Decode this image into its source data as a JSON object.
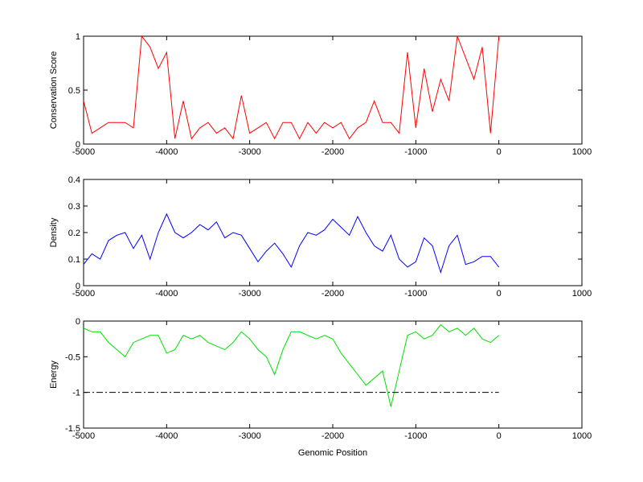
{
  "chart_data": [
    {
      "type": "line",
      "ylabel": "Conservation Score",
      "x": [
        -5000,
        -4900,
        -4800,
        -4700,
        -4600,
        -4500,
        -4400,
        -4300,
        -4200,
        -4100,
        -4000,
        -3900,
        -3800,
        -3700,
        -3600,
        -3500,
        -3400,
        -3300,
        -3200,
        -3100,
        -3000,
        -2900,
        -2800,
        -2700,
        -2600,
        -2500,
        -2400,
        -2300,
        -2200,
        -2100,
        -2000,
        -1900,
        -1800,
        -1700,
        -1600,
        -1500,
        -1400,
        -1300,
        -1200,
        -1100,
        -1000,
        -900,
        -800,
        -700,
        -600,
        -500,
        -400,
        -300,
        -200,
        -100,
        0
      ],
      "series": [
        {
          "color": "#ff0000",
          "values": [
            0.4,
            0.1,
            0.15,
            0.2,
            0.2,
            0.2,
            0.15,
            1,
            0.9,
            0.7,
            0.85,
            0.05,
            0.4,
            0.05,
            0.15,
            0.2,
            0.1,
            0.15,
            0.05,
            0.45,
            0.1,
            0.15,
            0.2,
            0.05,
            0.2,
            0.2,
            0.05,
            0.2,
            0.1,
            0.2,
            0.15,
            0.2,
            0.05,
            0.15,
            0.2,
            0.4,
            0.2,
            0.2,
            0.1,
            0.85,
            0.15,
            0.7,
            0.3,
            0.6,
            0.4,
            1,
            0.8,
            0.6,
            0.9,
            0.1,
            1
          ]
        }
      ],
      "xlim": [
        -5000,
        1000
      ],
      "xticks": [
        -5000,
        -4000,
        -3000,
        -2000,
        -1000,
        0,
        1000
      ],
      "ylim": [
        0,
        1
      ],
      "yticks": [
        0,
        0.5,
        1
      ]
    },
    {
      "type": "line",
      "ylabel": "Density",
      "x": [
        -5000,
        -4900,
        -4800,
        -4700,
        -4600,
        -4500,
        -4400,
        -4300,
        -4200,
        -4100,
        -4000,
        -3900,
        -3800,
        -3700,
        -3600,
        -3500,
        -3400,
        -3300,
        -3200,
        -3100,
        -3000,
        -2900,
        -2800,
        -2700,
        -2600,
        -2500,
        -2400,
        -2300,
        -2200,
        -2100,
        -2000,
        -1900,
        -1800,
        -1700,
        -1600,
        -1500,
        -1400,
        -1300,
        -1200,
        -1100,
        -1000,
        -900,
        -800,
        -700,
        -600,
        -500,
        -400,
        -300,
        -200,
        -100,
        0
      ],
      "series": [
        {
          "color": "#0000ff",
          "values": [
            0.08,
            0.12,
            0.1,
            0.17,
            0.19,
            0.2,
            0.14,
            0.19,
            0.1,
            0.2,
            0.27,
            0.2,
            0.18,
            0.2,
            0.23,
            0.21,
            0.24,
            0.18,
            0.2,
            0.19,
            0.14,
            0.09,
            0.13,
            0.16,
            0.12,
            0.07,
            0.15,
            0.2,
            0.19,
            0.21,
            0.25,
            0.22,
            0.19,
            0.26,
            0.2,
            0.15,
            0.13,
            0.19,
            0.1,
            0.07,
            0.09,
            0.18,
            0.15,
            0.05,
            0.15,
            0.19,
            0.08,
            0.09,
            0.11,
            0.11,
            0.07
          ]
        }
      ],
      "xlim": [
        -5000,
        1000
      ],
      "xticks": [
        -5000,
        -4000,
        -3000,
        -2000,
        -1000,
        0,
        1000
      ],
      "ylim": [
        0,
        0.4
      ],
      "yticks": [
        0,
        0.1,
        0.2,
        0.3,
        0.4
      ]
    },
    {
      "type": "line",
      "ylabel": "Energy",
      "xlabel": "Genomic Position",
      "x": [
        -5000,
        -4900,
        -4800,
        -4700,
        -4600,
        -4500,
        -4400,
        -4300,
        -4200,
        -4100,
        -4000,
        -3900,
        -3800,
        -3700,
        -3600,
        -3500,
        -3400,
        -3300,
        -3200,
        -3100,
        -3000,
        -2900,
        -2800,
        -2700,
        -2600,
        -2500,
        -2400,
        -2300,
        -2200,
        -2100,
        -2000,
        -1900,
        -1800,
        -1700,
        -1600,
        -1500,
        -1400,
        -1300,
        -1200,
        -1100,
        -1000,
        -900,
        -800,
        -700,
        -600,
        -500,
        -400,
        -300,
        -200,
        -100,
        0
      ],
      "series": [
        {
          "color": "#00e000",
          "values": [
            -0.1,
            -0.15,
            -0.15,
            -0.3,
            -0.4,
            -0.5,
            -0.3,
            -0.25,
            -0.2,
            -0.2,
            -0.45,
            -0.4,
            -0.2,
            -0.25,
            -0.2,
            -0.3,
            -0.35,
            -0.4,
            -0.3,
            -0.15,
            -0.25,
            -0.4,
            -0.5,
            -0.75,
            -0.4,
            -0.15,
            -0.15,
            -0.2,
            -0.25,
            -0.2,
            -0.25,
            -0.45,
            -0.6,
            -0.75,
            -0.9,
            -0.8,
            -0.7,
            -1.2,
            -0.7,
            -0.2,
            -0.15,
            -0.25,
            -0.2,
            -0.05,
            -0.15,
            -0.1,
            -0.2,
            -0.1,
            -0.25,
            -0.3,
            -0.2
          ]
        },
        {
          "color": "#000000",
          "dash": "dash-dot",
          "x": [
            -5000,
            0
          ],
          "values": [
            -1,
            -1
          ]
        }
      ],
      "xlim": [
        -5000,
        1000
      ],
      "xticks": [
        -5000,
        -4000,
        -3000,
        -2000,
        -1000,
        0,
        1000
      ],
      "ylim": [
        -1.5,
        0
      ],
      "yticks": [
        -1.5,
        -1,
        -0.5,
        0
      ]
    }
  ]
}
